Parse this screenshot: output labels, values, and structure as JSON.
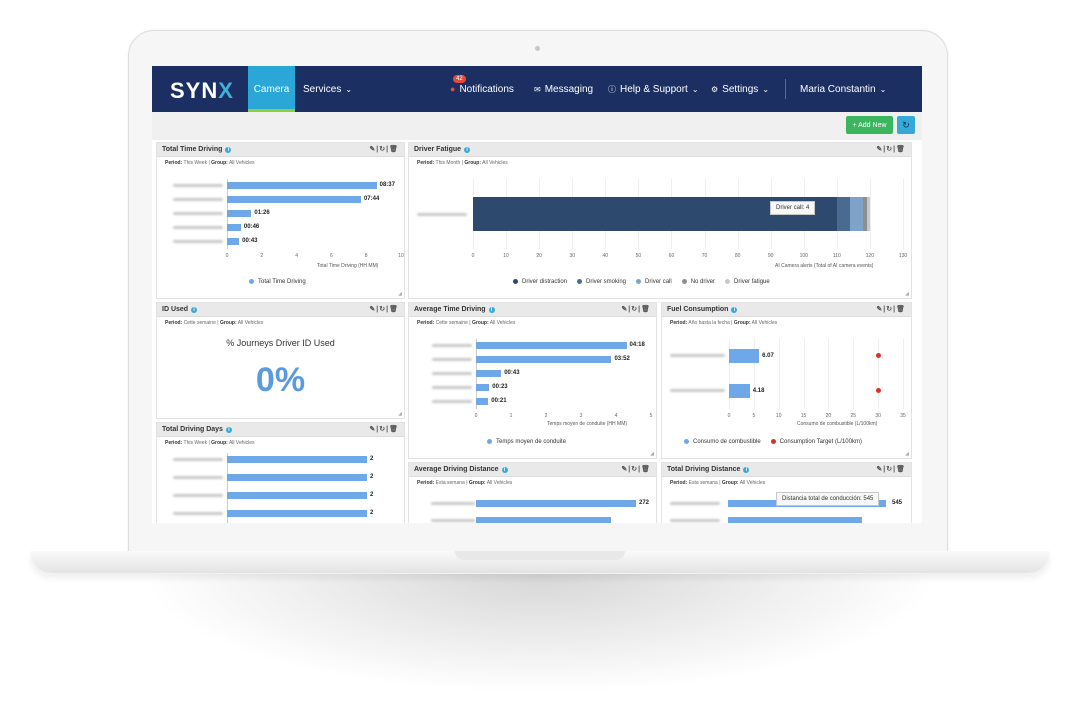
{
  "nav": {
    "logo": "SYNX",
    "camera": "Camera",
    "services": "Services",
    "notifications": "Notifications",
    "notifications_badge": "42",
    "messaging": "Messaging",
    "help": "Help & Support",
    "settings": "Settings",
    "user": "Maria Constantin"
  },
  "toolbar": {
    "add_new": "+ Add New"
  },
  "icons": {
    "edit": "edit-icon",
    "refresh": "refresh-icon",
    "delete": "trash-icon"
  },
  "widgets": {
    "total_time_driving": {
      "title": "Total Time Driving",
      "period_label": "Period:",
      "period": "This Week",
      "group_label": "Group:",
      "group": "All Vehicles",
      "axis_title": "Total Time Driving (HH MM)",
      "legend": "Total Time Driving",
      "ticks": [
        "0",
        "2",
        "4",
        "6",
        "8",
        "10"
      ],
      "values": [
        8.6,
        7.7,
        1.4,
        0.8,
        0.7
      ],
      "labels": [
        "08:37",
        "07:44",
        "01:26",
        "00:46",
        "00:43"
      ]
    },
    "driver_fatigue": {
      "title": "Driver Fatigue",
      "period_label": "Period:",
      "period": "This Month",
      "group_label": "Group:",
      "group": "All Vehicles",
      "axis_title": "AI Camera alerts (Total of AI camera events)",
      "ticks": [
        "0",
        "10",
        "20",
        "30",
        "40",
        "50",
        "60",
        "70",
        "80",
        "90",
        "100",
        "110",
        "120",
        "130"
      ],
      "tooltip": "Driver call: 4",
      "legend": [
        "Driver distraction",
        "Driver smoking",
        "Driver call",
        "No driver",
        "Driver fatigue"
      ],
      "values": [
        110,
        4,
        4,
        1,
        1
      ],
      "colors": [
        "#2d4a6e",
        "#4a6b8f",
        "#7fa3c8",
        "#8e8e8e",
        "#c8c8c8"
      ]
    },
    "id_used": {
      "title": "ID Used",
      "period_label": "Period:",
      "period": "Cette semaine",
      "group_label": "Group:",
      "group": "All Vehicles",
      "heading": "% Journeys Driver ID Used",
      "value": "0%"
    },
    "average_time_driving": {
      "title": "Average Time Driving",
      "period_label": "Period:",
      "period": "Cette semaine",
      "group_label": "Group:",
      "group": "All Vehicles",
      "axis_title": "Temps moyen de conduite (HH MM)",
      "legend": "Temps moyen de conduite",
      "ticks": [
        "0",
        "1",
        "2",
        "3",
        "4",
        "5"
      ],
      "values": [
        4.3,
        3.87,
        0.72,
        0.38,
        0.35
      ],
      "labels": [
        "04:18",
        "03:52",
        "00:43",
        "00:23",
        "00:21"
      ]
    },
    "fuel_consumption": {
      "title": "Fuel Consumption",
      "period_label": "Period:",
      "period": "Año hasta la fecha",
      "group_label": "Group:",
      "group": "All Vehicles",
      "axis_title": "Consumo de combustible (L/100km)",
      "legend": [
        "Consumo de combustible",
        "Consumption Target (L/100km)"
      ],
      "ticks": [
        "0",
        "5",
        "10",
        "15",
        "20",
        "25",
        "30",
        "35"
      ],
      "values": [
        6.07,
        4.18
      ],
      "labels": [
        "6.07",
        "4.18"
      ],
      "target": 30
    },
    "total_driving_days": {
      "title": "Total Driving Days",
      "period_label": "Period:",
      "period": "This Week",
      "group_label": "Group:",
      "group": "All Vehicles",
      "values": [
        2,
        2,
        2,
        2
      ],
      "labels": [
        "2",
        "2",
        "2",
        "2"
      ]
    },
    "average_driving_distance": {
      "title": "Average Driving Distance",
      "period_label": "Period:",
      "period": "Esta semana",
      "group_label": "Group:",
      "group": "All Vehicles",
      "labels": [
        "272"
      ]
    },
    "total_driving_distance": {
      "title": "Total Driving Distance",
      "period_label": "Period:",
      "period": "Esta semana",
      "group_label": "Group:",
      "group": "All Vehicles",
      "tooltip": "Distancia total de conducción: 545",
      "labels": [
        "545"
      ]
    }
  }
}
